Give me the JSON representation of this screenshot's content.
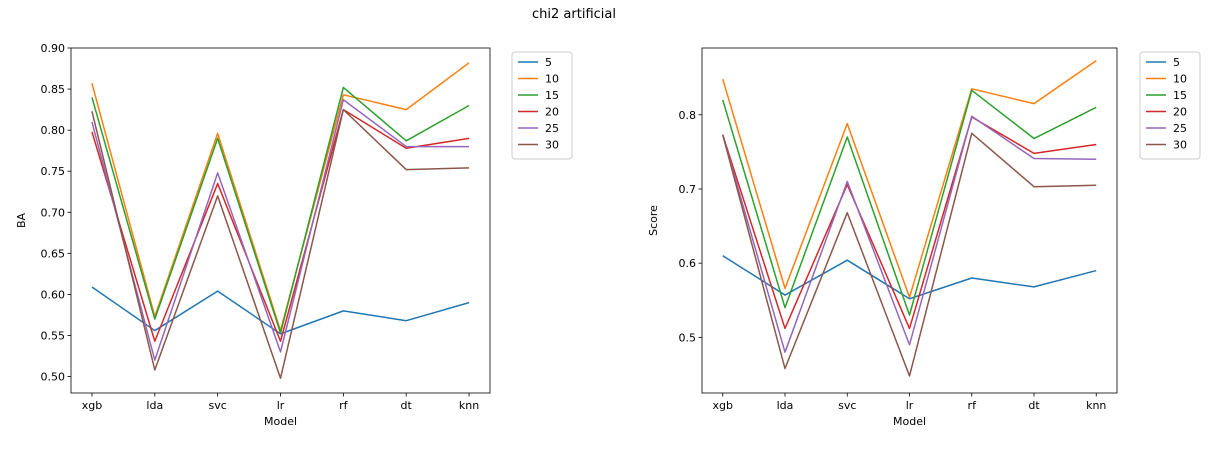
{
  "figure_title": "chi2 artificial",
  "chart_data": [
    {
      "type": "line",
      "xlabel": "Model",
      "ylabel": "BA",
      "categories": [
        "xgb",
        "lda",
        "svc",
        "lr",
        "rf",
        "dt",
        "knn"
      ],
      "ylim": [
        0.48,
        0.9
      ],
      "yticks": [
        "0.50",
        "0.55",
        "0.60",
        "0.65",
        "0.70",
        "0.75",
        "0.80",
        "0.85",
        "0.90"
      ],
      "legend_position": "outside-right",
      "series": [
        {
          "name": "5",
          "color": "#1f77b4",
          "values": [
            0.609,
            0.556,
            0.604,
            0.552,
            0.58,
            0.568,
            0.59
          ]
        },
        {
          "name": "10",
          "color": "#ff7f0e",
          "values": [
            0.857,
            0.573,
            0.796,
            0.556,
            0.843,
            0.825,
            0.882
          ]
        },
        {
          "name": "15",
          "color": "#2ca02c",
          "values": [
            0.84,
            0.57,
            0.79,
            0.553,
            0.852,
            0.787,
            0.83
          ]
        },
        {
          "name": "20",
          "color": "#d62728",
          "values": [
            0.798,
            0.543,
            0.735,
            0.543,
            0.825,
            0.778,
            0.79
          ]
        },
        {
          "name": "25",
          "color": "#9467bd",
          "values": [
            0.81,
            0.52,
            0.748,
            0.53,
            0.837,
            0.78,
            0.78
          ]
        },
        {
          "name": "30",
          "color": "#8c564b",
          "values": [
            0.823,
            0.508,
            0.72,
            0.498,
            0.825,
            0.752,
            0.754
          ]
        }
      ]
    },
    {
      "type": "line",
      "xlabel": "Model",
      "ylabel": "Score",
      "categories": [
        "xgb",
        "lda",
        "svc",
        "lr",
        "rf",
        "dt",
        "knn"
      ],
      "ylim": [
        0.425,
        0.89
      ],
      "yticks": [
        "0.5",
        "0.6",
        "0.7",
        "0.8"
      ],
      "legend_position": "outside-right",
      "series": [
        {
          "name": "5",
          "color": "#1f77b4",
          "values": [
            0.61,
            0.557,
            0.604,
            0.552,
            0.58,
            0.568,
            0.59
          ]
        },
        {
          "name": "10",
          "color": "#ff7f0e",
          "values": [
            0.848,
            0.566,
            0.788,
            0.554,
            0.835,
            0.815,
            0.873
          ]
        },
        {
          "name": "15",
          "color": "#2ca02c",
          "values": [
            0.82,
            0.54,
            0.77,
            0.53,
            0.833,
            0.768,
            0.81
          ]
        },
        {
          "name": "20",
          "color": "#d62728",
          "values": [
            0.773,
            0.512,
            0.706,
            0.512,
            0.797,
            0.748,
            0.76
          ]
        },
        {
          "name": "25",
          "color": "#9467bd",
          "values": [
            0.773,
            0.48,
            0.71,
            0.49,
            0.798,
            0.741,
            0.74
          ]
        },
        {
          "name": "30",
          "color": "#8c564b",
          "values": [
            0.773,
            0.458,
            0.668,
            0.448,
            0.775,
            0.703,
            0.705
          ]
        }
      ]
    }
  ]
}
